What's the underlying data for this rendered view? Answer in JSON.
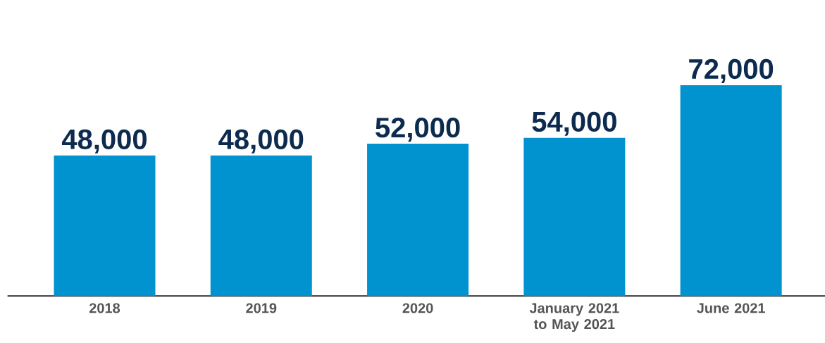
{
  "chart_data": {
    "type": "bar",
    "categories": [
      "2018",
      "2019",
      "2020",
      "January 2021 to May 2021",
      "June 2021"
    ],
    "values": [
      48000,
      48000,
      52000,
      54000,
      72000
    ],
    "value_labels": [
      "48,000",
      "48,000",
      "52,000",
      "54,000",
      "72,000"
    ],
    "color": "#0093d0"
  }
}
